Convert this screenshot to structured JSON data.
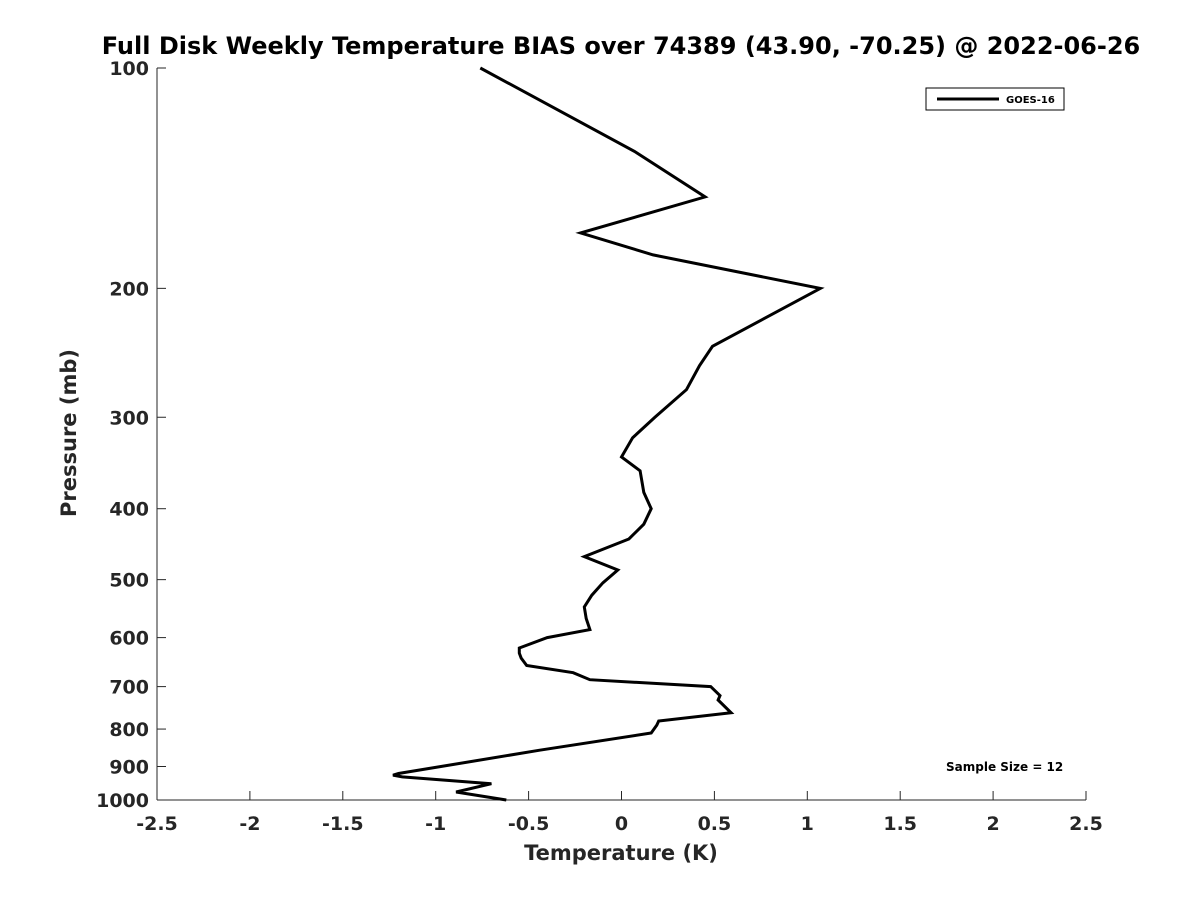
{
  "chart_data": {
    "type": "line",
    "title": "Full Disk Weekly Temperature BIAS over 74389 (43.90, -70.25) @ 2022-06-26",
    "xlabel": "Temperature (K)",
    "ylabel": "Pressure (mb)",
    "xlim": [
      -2.5,
      2.5
    ],
    "ylim": [
      100,
      1000
    ],
    "yscale": "log",
    "y_reversed": true,
    "x_ticks": [
      -2.5,
      -2,
      -1.5,
      -1,
      -0.5,
      0,
      0.5,
      1,
      1.5,
      2,
      2.5
    ],
    "x_tick_labels": [
      "-2.5",
      "-2",
      "-1.5",
      "-1",
      "-0.5",
      "0",
      "0.5",
      "1",
      "1.5",
      "2",
      "2.5"
    ],
    "y_ticks": [
      100,
      200,
      300,
      400,
      500,
      600,
      700,
      800,
      900,
      1000
    ],
    "y_tick_labels": [
      "100",
      "200",
      "300",
      "400",
      "500",
      "600",
      "700",
      "800",
      "900",
      "1000"
    ],
    "grid": false,
    "legend_position": "top-right",
    "series": [
      {
        "name": "GOES-16",
        "color": "#000000",
        "x": [
          -0.76,
          0.07,
          0.45,
          -0.22,
          0.17,
          1.07,
          0.49,
          0.42,
          0.35,
          0.18,
          0.06,
          0.0,
          0.1,
          0.12,
          0.16,
          0.12,
          0.04,
          -0.2,
          -0.02,
          -0.1,
          -0.16,
          -0.2,
          -0.19,
          -0.17,
          -0.4,
          -0.55,
          -0.55,
          -0.54,
          -0.51,
          -0.26,
          -0.17,
          0.48,
          0.53,
          0.52,
          0.59,
          0.2,
          0.19,
          0.16,
          -0.44,
          -1.2,
          -1.23,
          -1.18,
          -0.7,
          -0.89,
          -0.62
        ],
        "y": [
          100,
          130,
          150,
          168,
          180,
          200,
          240,
          255,
          275,
          300,
          320,
          340,
          355,
          380,
          400,
          420,
          440,
          465,
          485,
          505,
          525,
          545,
          565,
          585,
          600,
          620,
          630,
          640,
          655,
          670,
          685,
          700,
          720,
          730,
          760,
          780,
          790,
          810,
          855,
          920,
          925,
          930,
          950,
          975,
          1000
        ]
      }
    ],
    "annotations": [
      {
        "text": "Sample Size = 12"
      }
    ]
  }
}
